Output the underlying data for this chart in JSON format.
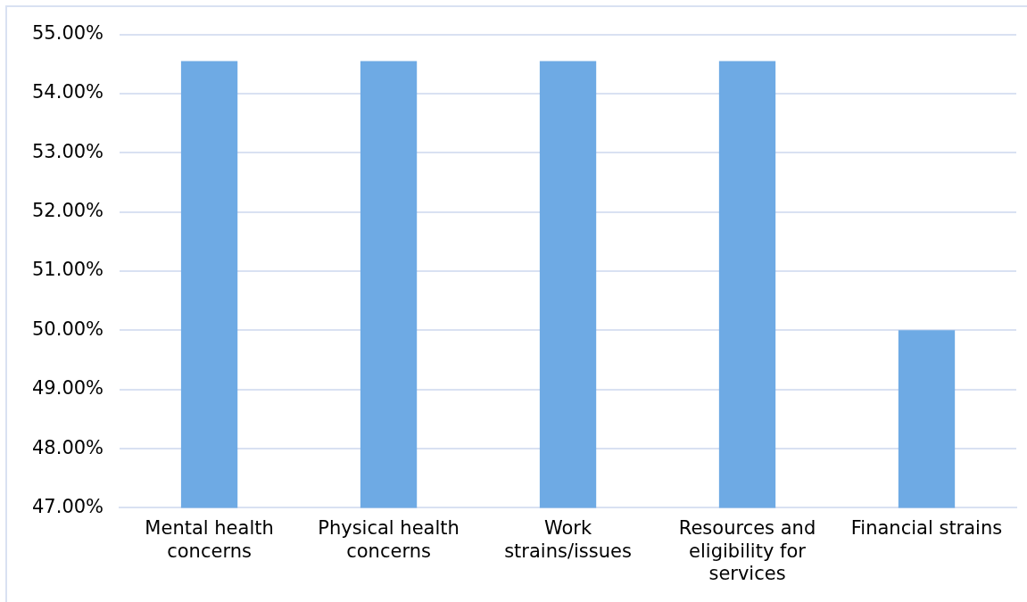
{
  "chart_data": {
    "type": "bar",
    "categories": [
      "Mental health concerns",
      "Physical health concerns",
      "Work strains/issues",
      "Resources and eligibility for services",
      "Financial strains"
    ],
    "values": [
      54.55,
      54.55,
      54.55,
      54.55,
      50
    ],
    "color": "#6eaae4",
    "ylim": [
      47,
      55
    ],
    "yticks": [
      {
        "value": 47,
        "label": "47.00%"
      },
      {
        "value": 48,
        "label": "48.00%"
      },
      {
        "value": 49,
        "label": "49.00%"
      },
      {
        "value": 50,
        "label": "50.00%"
      },
      {
        "value": 51,
        "label": "51.00%"
      },
      {
        "value": 52,
        "label": "52.00%"
      },
      {
        "value": 53,
        "label": "53.00%"
      },
      {
        "value": 54,
        "label": "54.00%"
      },
      {
        "value": 55,
        "label": "55.00%"
      }
    ],
    "grid": "y",
    "legend": false
  }
}
